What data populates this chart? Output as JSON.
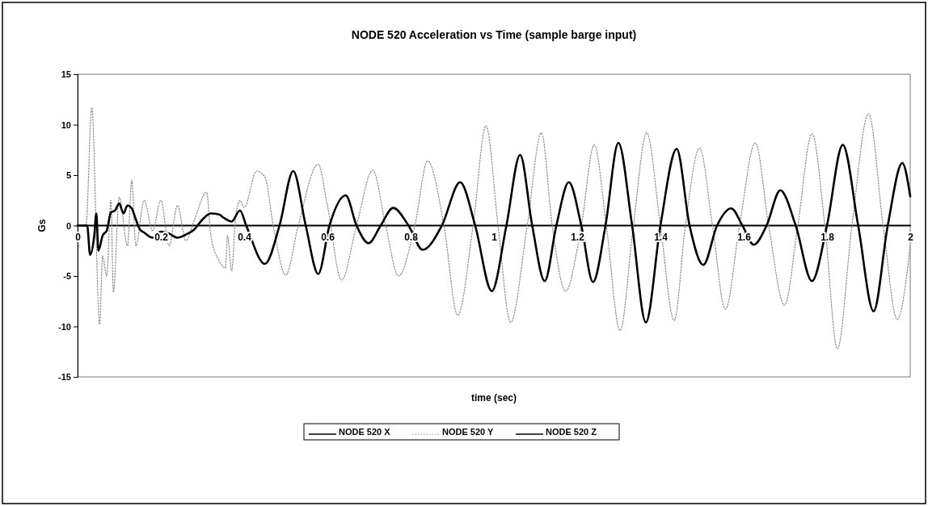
{
  "chart_data": {
    "type": "line",
    "title": "NODE 520 Acceleration vs Time (sample barge input)",
    "xlabel": "time (sec)",
    "ylabel": "Gs",
    "xlim": [
      0,
      2
    ],
    "xticks": [
      0,
      0.2,
      0.4,
      0.6,
      0.8,
      1,
      1.2,
      1.4,
      1.6,
      1.8,
      2
    ],
    "ylim": [
      -15,
      15
    ],
    "yticks": [
      -15,
      -10,
      -5,
      0,
      5,
      10,
      15
    ],
    "grid": false,
    "legend": "bottom",
    "marker": "none",
    "series": [
      {
        "name": "NODE 520 X",
        "color": "#000000",
        "line_style": "solid",
        "x": [
          0,
          2
        ],
        "values": [
          0,
          0
        ]
      },
      {
        "name": "NODE 520 Y",
        "color": "#8a8a8a",
        "line_style": "dotted",
        "x": [
          0,
          0.02,
          0.034,
          0.053,
          0.06,
          0.07,
          0.08,
          0.086,
          0.1,
          0.12,
          0.13,
          0.14,
          0.16,
          0.18,
          0.2,
          0.22,
          0.24,
          0.26,
          0.28,
          0.31,
          0.32,
          0.34,
          0.355,
          0.36,
          0.37,
          0.38,
          0.39,
          0.4,
          0.43,
          0.45,
          0.47,
          0.5,
          0.53,
          0.578,
          0.6,
          0.634,
          0.67,
          0.709,
          0.74,
          0.771,
          0.81,
          0.841,
          0.88,
          0.913,
          0.95,
          0.981,
          1.01,
          1.04,
          1.08,
          1.114,
          1.14,
          1.172,
          1.21,
          1.241,
          1.27,
          1.303,
          1.335,
          1.367,
          1.4,
          1.433,
          1.46,
          1.494,
          1.525,
          1.556,
          1.59,
          1.628,
          1.66,
          1.698,
          1.73,
          1.764,
          1.795,
          1.825,
          1.86,
          1.9,
          1.935,
          1.969,
          2
        ],
        "values": [
          0,
          0,
          11.7,
          -9.8,
          -3,
          -5,
          2.5,
          -6.6,
          2.8,
          -2,
          4.5,
          -2,
          2.5,
          -0.5,
          2.5,
          -2,
          2,
          -1.5,
          0.5,
          3.3,
          -1,
          -3.5,
          -4.2,
          -1,
          -4.5,
          1,
          2.5,
          1.8,
          5.4,
          4.8,
          0,
          -4.9,
          0,
          6.1,
          2,
          -5.4,
          0,
          5.5,
          0,
          -5,
          0,
          6.4,
          0,
          -8.9,
          0,
          9.9,
          0,
          -9.6,
          0,
          9.2,
          0,
          -6.5,
          0,
          8,
          0,
          -10.4,
          0,
          9.2,
          0,
          -9.4,
          0,
          7.7,
          0,
          -8.3,
          0,
          8.2,
          0,
          -7.9,
          0,
          9.1,
          0,
          -12.2,
          0,
          11.1,
          0,
          -9.3,
          -2
        ]
      },
      {
        "name": "NODE 520 Z",
        "color": "#000000",
        "line_style": "solid",
        "x": [
          0,
          0.023,
          0.03,
          0.04,
          0.045,
          0.05,
          0.06,
          0.07,
          0.08,
          0.09,
          0.1,
          0.11,
          0.12,
          0.13,
          0.14,
          0.15,
          0.16,
          0.18,
          0.2,
          0.22,
          0.24,
          0.26,
          0.28,
          0.3,
          0.32,
          0.34,
          0.35,
          0.37,
          0.39,
          0.405,
          0.45,
          0.485,
          0.518,
          0.548,
          0.578,
          0.605,
          0.644,
          0.67,
          0.699,
          0.728,
          0.758,
          0.795,
          0.829,
          0.875,
          0.919,
          0.955,
          0.995,
          1.03,
          1.063,
          1.092,
          1.122,
          1.15,
          1.18,
          1.21,
          1.238,
          1.268,
          1.299,
          1.332,
          1.365,
          1.4,
          1.439,
          1.47,
          1.503,
          1.536,
          1.57,
          1.597,
          1.624,
          1.655,
          1.688,
          1.725,
          1.764,
          1.8,
          1.838,
          1.875,
          1.912,
          1.946,
          1.981,
          2
        ],
        "values": [
          0,
          0,
          -2.9,
          -1,
          1.2,
          -2.5,
          -1,
          -0.5,
          1.3,
          1.5,
          2.2,
          1.2,
          2,
          1.7,
          0.6,
          -0.4,
          -0.7,
          -1.2,
          -0.6,
          -0.8,
          -1.2,
          -0.9,
          -0.4,
          0.6,
          1.2,
          1.1,
          0.8,
          0.4,
          1.5,
          0,
          -3.8,
          0,
          5.4,
          0,
          -4.8,
          0,
          3,
          0,
          -1.75,
          0,
          1.75,
          0,
          -2.4,
          0,
          4.3,
          0,
          -6.5,
          0,
          7,
          0,
          -5.5,
          0,
          4.3,
          0,
          -5.6,
          0,
          8.2,
          0,
          -9.6,
          0,
          7.6,
          0,
          -3.9,
          0,
          1.7,
          0,
          -1.9,
          0,
          3.5,
          0,
          -5.5,
          0,
          8,
          0,
          -8.5,
          0,
          6.2,
          2.9
        ]
      }
    ]
  }
}
